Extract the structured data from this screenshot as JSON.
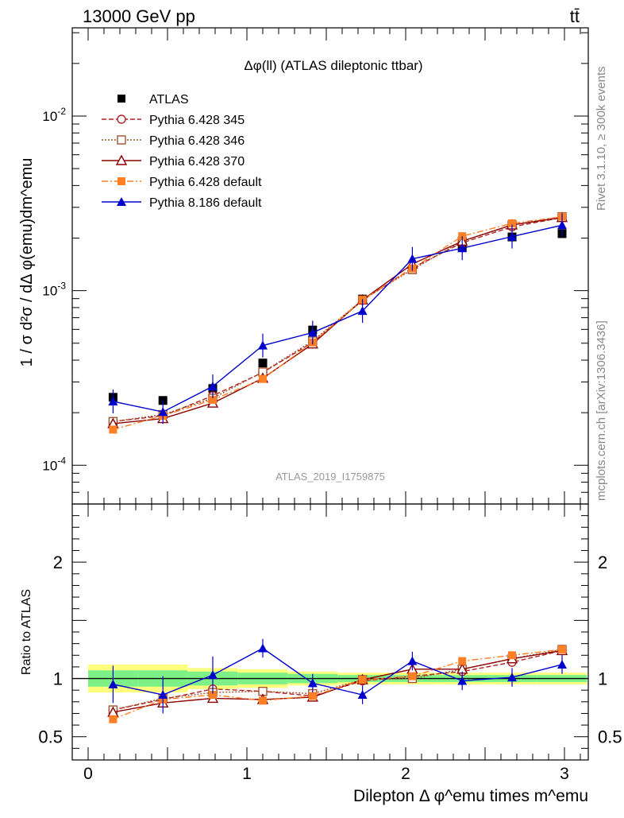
{
  "header": {
    "energy_label": "13000 GeV pp",
    "process_label": "tt̄"
  },
  "side": {
    "rivet_label": "Rivet 3.1.10, ≥ 300k events",
    "source_label": "mcplots.cern.ch [arXiv:1306.3436]"
  },
  "chart_data": [
    {
      "type": "line",
      "title": "Δφ(ll) (ATLAS dileptonic ttbar)",
      "analysis_label": "ATLAS_2019_I1759875",
      "ylabel": "1 / σ  d²σ / dΔ φ(emu)dm^emu",
      "yscale": "log",
      "ylim": [
        6e-05,
        0.032
      ],
      "xlim": [
        -0.1,
        3.15
      ],
      "y_ticks": [
        "10^-4",
        "10^-3",
        "10^-2"
      ],
      "x": [
        0.157,
        0.471,
        0.785,
        1.1,
        1.414,
        1.728,
        2.042,
        2.356,
        2.67,
        2.985
      ],
      "series": [
        {
          "name": "ATLAS",
          "color": "#000000",
          "marker": "square-filled",
          "dash": "none",
          "values": [
            0.000245,
            0.000235,
            0.000275,
            0.000385,
            0.000595,
            0.000895,
            0.00132,
            0.00178,
            0.00203,
            0.00212
          ]
        },
        {
          "name": "Pythia 6.428 345",
          "color": "#b22222",
          "marker": "circle-open",
          "dash": "6,3",
          "values": [
            0.000178,
            0.000192,
            0.00025,
            0.00034,
            0.000505,
            0.00088,
            0.00135,
            0.00188,
            0.00232,
            0.00262
          ]
        },
        {
          "name": "Pythia 6.428 346",
          "color": "#a0522d",
          "marker": "square-open",
          "dash": "2,2",
          "values": [
            0.000178,
            0.000195,
            0.000242,
            0.000342,
            0.000515,
            0.000885,
            0.00132,
            0.00192,
            0.00238,
            0.00265
          ]
        },
        {
          "name": "Pythia 6.428 370",
          "color": "#8b0000",
          "marker": "triangle-open",
          "dash": "none",
          "values": [
            0.000173,
            0.000185,
            0.000227,
            0.000315,
            0.000495,
            0.000885,
            0.00142,
            0.00192,
            0.00238,
            0.00262
          ]
        },
        {
          "name": "Pythia 6.428 default",
          "color": "#ff7f27",
          "marker": "square-filled",
          "dash": "8,3,2,3",
          "values": [
            0.00016,
            0.000192,
            0.000237,
            0.000312,
            0.000505,
            0.000885,
            0.00134,
            0.00205,
            0.00243,
            0.00265
          ]
        },
        {
          "name": "Pythia 8.186 default",
          "color": "#0000cd",
          "marker": "triangle-filled",
          "dash": "none",
          "values": [
            0.000232,
            0.000202,
            0.000283,
            0.000485,
            0.000575,
            0.000765,
            0.00152,
            0.00175,
            0.00204,
            0.00237
          ]
        }
      ]
    },
    {
      "type": "line",
      "ylabel": "Ratio to ATLAS",
      "xlabel": "Dilepton Δ φ^emu times m^emu",
      "ylim": [
        0.3,
        2.5
      ],
      "y_ticks": [
        "0.5",
        "1",
        "2"
      ],
      "x_ticks": [
        "0",
        "1",
        "2",
        "3"
      ],
      "reference": 1.0,
      "x": [
        0.157,
        0.471,
        0.785,
        1.1,
        1.414,
        1.728,
        2.042,
        2.356,
        2.67,
        2.985
      ],
      "band_inner": [
        0.07,
        0.07,
        0.06,
        0.05,
        0.04,
        0.03,
        0.03,
        0.03,
        0.03,
        0.03
      ],
      "band_outer": [
        0.12,
        0.12,
        0.09,
        0.08,
        0.06,
        0.05,
        0.05,
        0.05,
        0.05,
        0.05
      ],
      "series": [
        {
          "name": "Pythia 6.428 345",
          "color": "#b22222",
          "marker": "circle-open",
          "dash": "6,3",
          "values": [
            0.73,
            0.82,
            0.91,
            0.89,
            0.85,
            0.98,
            1.02,
            1.06,
            1.14,
            1.24
          ]
        },
        {
          "name": "Pythia 6.428 346",
          "color": "#a0522d",
          "marker": "square-open",
          "dash": "2,2",
          "values": [
            0.73,
            0.83,
            0.88,
            0.89,
            0.87,
            0.99,
            1.0,
            1.08,
            1.17,
            1.25
          ]
        },
        {
          "name": "Pythia 6.428 370",
          "color": "#8b0000",
          "marker": "triangle-open",
          "dash": "none",
          "values": [
            0.71,
            0.79,
            0.83,
            0.82,
            0.84,
            0.99,
            1.08,
            1.08,
            1.17,
            1.24
          ]
        },
        {
          "name": "Pythia 6.428 default",
          "color": "#ff7f27",
          "marker": "square-filled",
          "dash": "8,3,2,3",
          "values": [
            0.65,
            0.82,
            0.86,
            0.81,
            0.85,
            0.99,
            1.02,
            1.15,
            1.2,
            1.25
          ]
        },
        {
          "name": "Pythia 8.186 default",
          "color": "#0000cd",
          "marker": "triangle-filled",
          "dash": "none",
          "values": [
            0.95,
            0.86,
            1.03,
            1.26,
            0.96,
            0.86,
            1.15,
            0.98,
            1.01,
            1.12
          ]
        }
      ]
    }
  ]
}
